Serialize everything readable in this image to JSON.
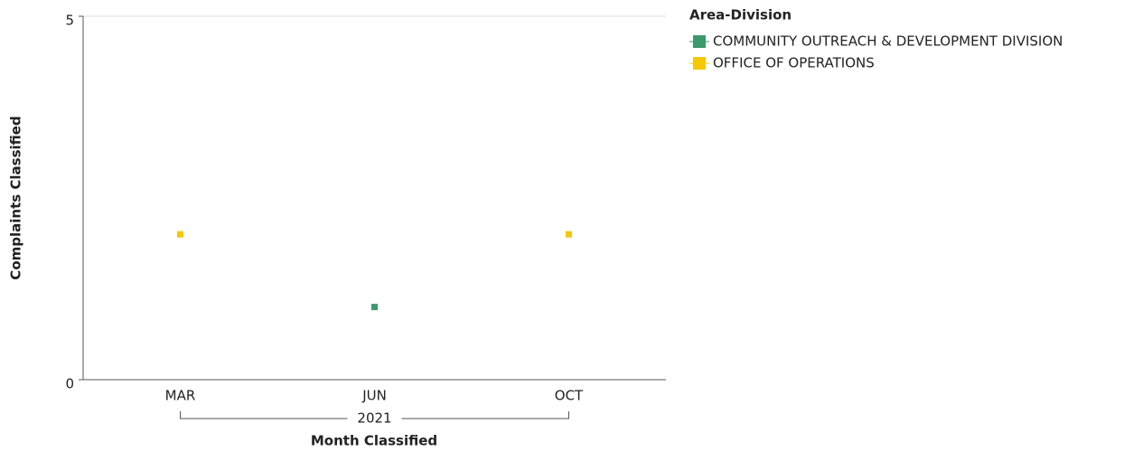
{
  "chart_data": {
    "type": "scatter",
    "categories": [
      "MAR",
      "JUN",
      "OCT"
    ],
    "category_group": "2021",
    "x_label": "Month Classified",
    "y_label": "Complaints Classified",
    "legend_title": "Area-Division",
    "legend_position": "right",
    "ylim": [
      0,
      5
    ],
    "yticks": [
      0,
      5
    ],
    "series": [
      {
        "name": "COMMUNITY OUTREACH & DEVELOPMENT DIVISION",
        "color": "#3a9a6a",
        "values": [
          null,
          1,
          null
        ]
      },
      {
        "name": "OFFICE OF OPERATIONS",
        "color": "#f5c800",
        "values": [
          2,
          null,
          2
        ]
      }
    ]
  }
}
